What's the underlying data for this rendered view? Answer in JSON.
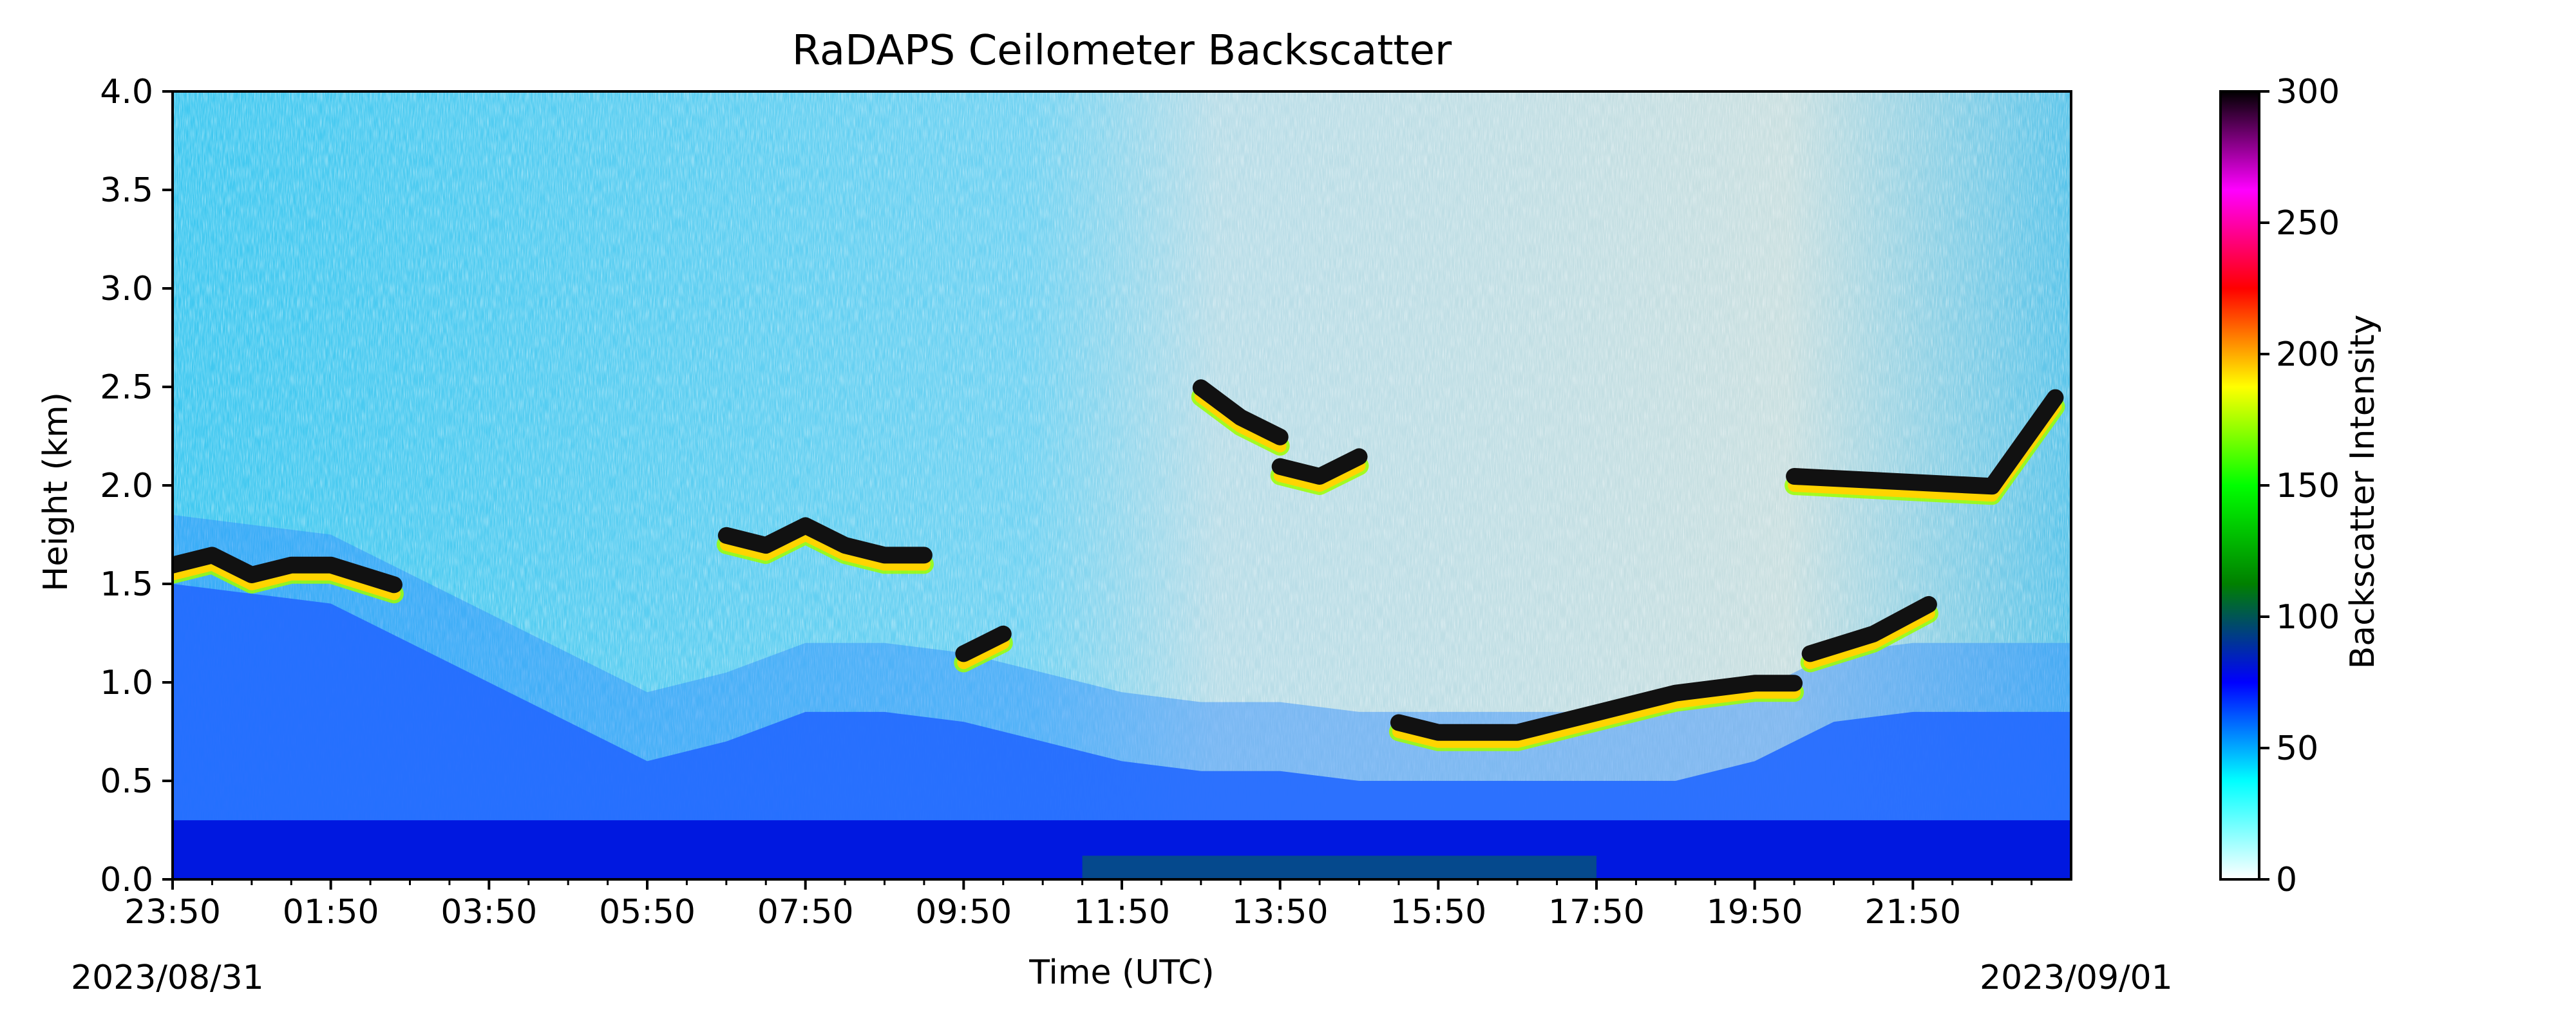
{
  "chart_data": {
    "type": "heatmap",
    "title": "RaDAPS Ceilometer Backscatter",
    "xlabel": "Time (UTC)",
    "ylabel": "Height (km)",
    "ylim": [
      0.0,
      4.0
    ],
    "xlim": [
      "2023/08/31 23:50",
      "2023/09/01 23:50"
    ],
    "x_ticks": [
      "23:50",
      "01:50",
      "03:50",
      "05:50",
      "07:50",
      "09:50",
      "11:50",
      "13:50",
      "15:50",
      "17:50",
      "19:50",
      "21:50"
    ],
    "y_ticks": [
      "0.0",
      "0.5",
      "1.0",
      "1.5",
      "2.0",
      "2.5",
      "3.0",
      "3.5",
      "4.0"
    ],
    "date_start": "2023/08/31",
    "date_end": "2023/09/01",
    "colorbar": {
      "label": "Backscatter Intensity",
      "range": [
        0,
        300
      ],
      "ticks": [
        "0",
        "50",
        "100",
        "150",
        "200",
        "250",
        "300"
      ]
    },
    "colorscale": [
      "#ffffff",
      "#00ffff",
      "#0000ff",
      "#008000",
      "#00ff00",
      "#ffff00",
      "#ff0000",
      "#ff00ff",
      "#000000"
    ],
    "features": [
      {
        "kind": "aerosol_layer_top",
        "time_hours": [
          0,
          1,
          2,
          3,
          4,
          5,
          6,
          7,
          8,
          9,
          10,
          11,
          12,
          13,
          14,
          15,
          16,
          17,
          18,
          19,
          20,
          21,
          22,
          23,
          24
        ],
        "height_km": [
          1.5,
          1.45,
          1.4,
          1.2,
          1.0,
          0.8,
          0.6,
          0.7,
          0.85,
          0.85,
          0.8,
          0.7,
          0.6,
          0.55,
          0.55,
          0.5,
          0.5,
          0.5,
          0.5,
          0.5,
          0.6,
          0.8,
          0.85,
          0.85,
          0.85
        ]
      },
      {
        "kind": "cloud_layer",
        "time_hours": [
          0.0,
          0.5,
          1.0,
          1.5,
          2.0,
          2.8
        ],
        "height_km": [
          1.55,
          1.6,
          1.5,
          1.55,
          1.55,
          1.45
        ]
      },
      {
        "kind": "cloud_layer",
        "time_hours": [
          7.0,
          7.5,
          8.0,
          8.5,
          9.0,
          9.5
        ],
        "height_km": [
          1.7,
          1.65,
          1.75,
          1.65,
          1.6,
          1.6
        ]
      },
      {
        "kind": "cloud_layer",
        "time_hours": [
          10.0,
          10.25,
          10.5
        ],
        "height_km": [
          1.1,
          1.15,
          1.2
        ]
      },
      {
        "kind": "cloud_layer",
        "time_hours": [
          13.0,
          13.5,
          14.0
        ],
        "height_km": [
          2.45,
          2.3,
          2.2
        ]
      },
      {
        "kind": "cloud_layer",
        "time_hours": [
          14.0,
          14.5,
          15.0
        ],
        "height_km": [
          2.05,
          2.0,
          2.1
        ]
      },
      {
        "kind": "cloud_layer",
        "time_hours": [
          15.5,
          16.0,
          17.0,
          18.0,
          19.0,
          20.0,
          20.5
        ],
        "height_km": [
          0.75,
          0.7,
          0.7,
          0.8,
          0.9,
          0.95,
          0.95
        ]
      },
      {
        "kind": "cloud_layer",
        "time_hours": [
          20.7,
          21.5,
          22.2
        ],
        "height_km": [
          1.1,
          1.2,
          1.35
        ]
      },
      {
        "kind": "cloud_layer",
        "time_hours": [
          20.5,
          23.0,
          23.8
        ],
        "height_km": [
          2.0,
          1.95,
          2.4
        ]
      }
    ]
  }
}
